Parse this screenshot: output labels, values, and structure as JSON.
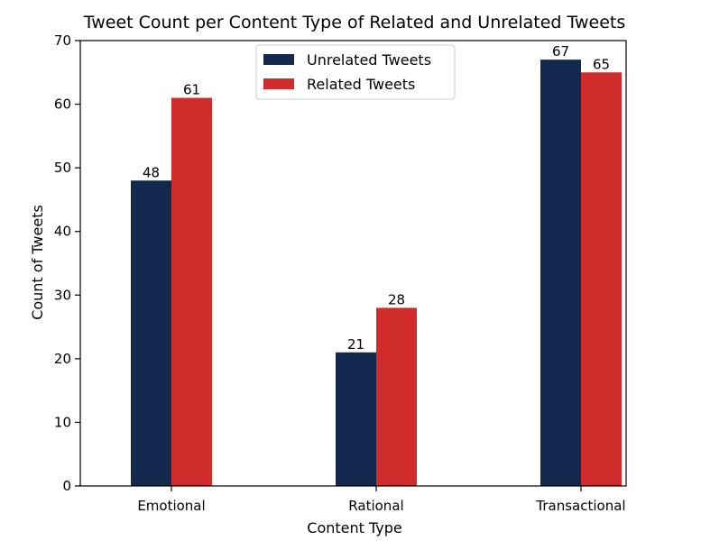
{
  "chart_data": {
    "type": "bar",
    "title": "Tweet Count per Content Type of Related and Unrelated Tweets",
    "xlabel": "Content Type",
    "ylabel": "Count of Tweets",
    "categories": [
      "Emotional",
      "Rational",
      "Transactional"
    ],
    "series": [
      {
        "name": "Unrelated Tweets",
        "values": [
          48,
          21,
          67
        ],
        "color": "#12284c"
      },
      {
        "name": "Related Tweets",
        "values": [
          61,
          28,
          65
        ],
        "color": "#d12c2c"
      }
    ],
    "ylim": [
      0,
      70
    ],
    "yticks": [
      0,
      10,
      20,
      30,
      40,
      50,
      60,
      70
    ],
    "grid": false,
    "legend_position": "top-center",
    "data_labels": true
  }
}
